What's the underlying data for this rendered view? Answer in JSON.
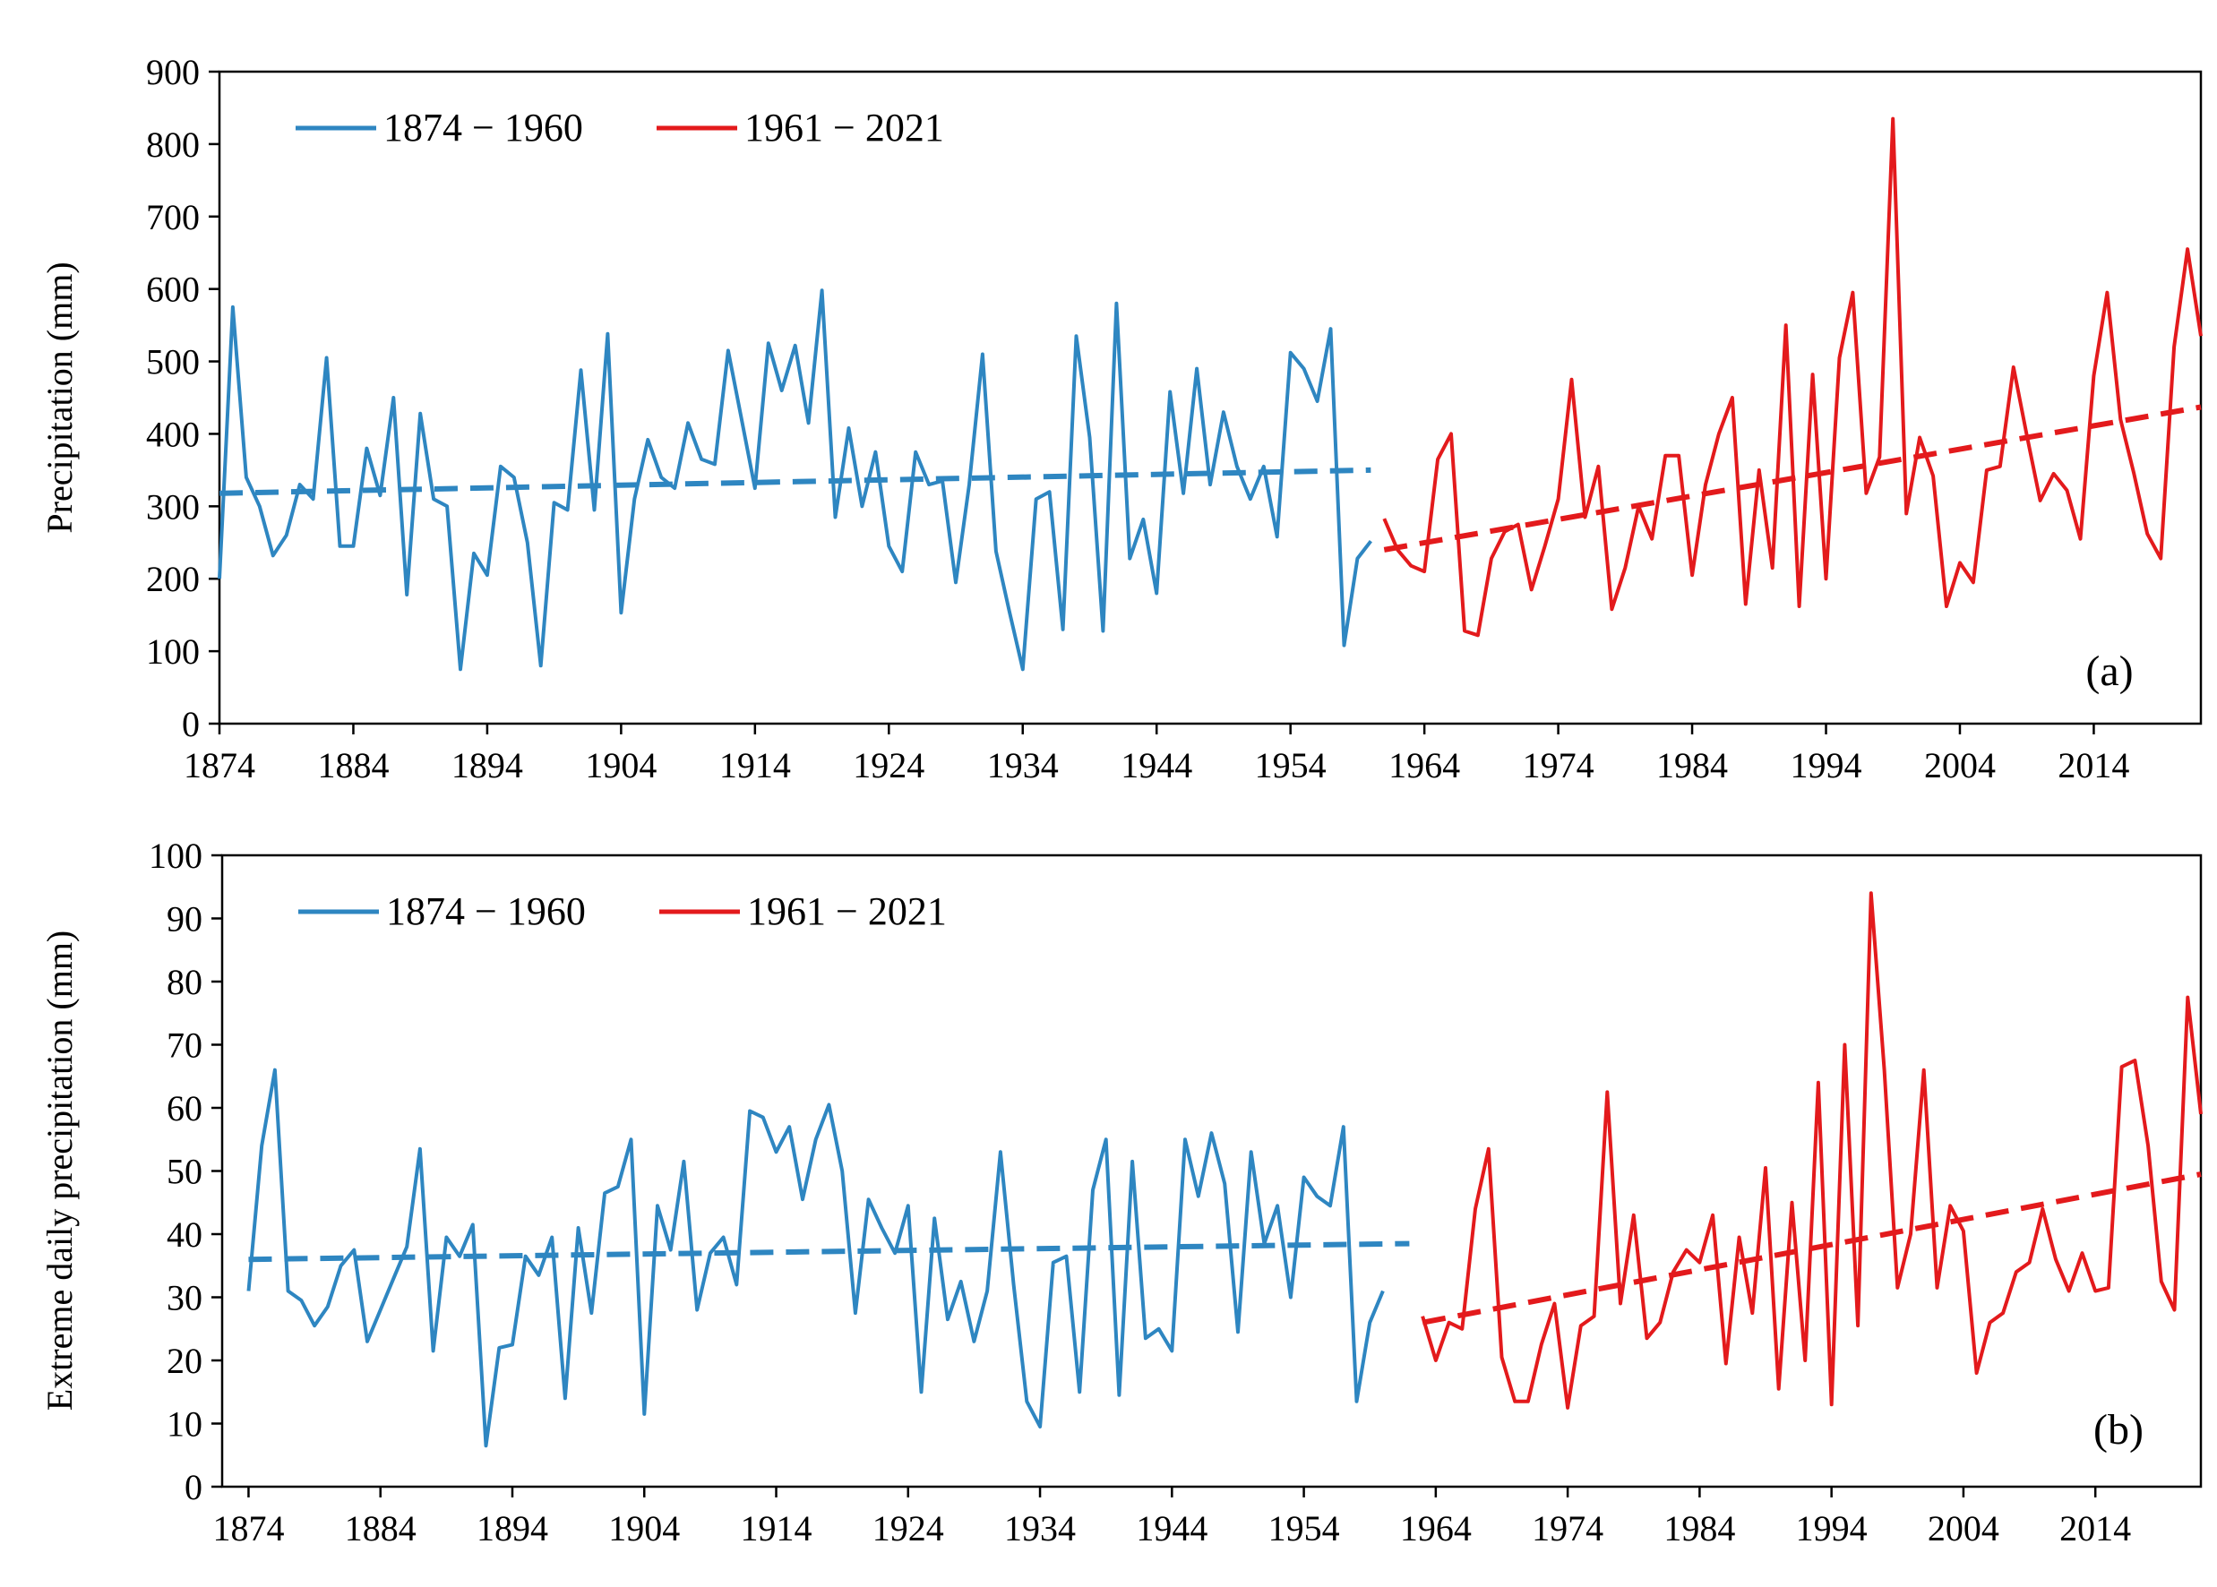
{
  "chart_data": [
    {
      "type": "line",
      "panel_label": "(a)",
      "ylabel": "Precipitation (mm)",
      "ylim": [
        0,
        900
      ],
      "yticks": [
        0,
        100,
        200,
        300,
        400,
        500,
        600,
        700,
        800,
        900
      ],
      "xlim": [
        1874,
        2022
      ],
      "xticks": [
        1874,
        1884,
        1894,
        1904,
        1914,
        1924,
        1934,
        1944,
        1954,
        1964,
        1974,
        1984,
        1994,
        2004,
        2014
      ],
      "legend": [
        "1874 − 1960",
        "1961 − 2021"
      ],
      "legend_position": "top-left",
      "colors": {
        "early": "#2E86C1",
        "late": "#E31A1C"
      },
      "series": [
        {
          "name": "1874 − 1960",
          "x_start": 1874,
          "values": [
            200,
            575,
            340,
            300,
            232,
            260,
            330,
            310,
            505,
            245,
            245,
            380,
            315,
            450,
            178,
            428,
            310,
            300,
            75,
            235,
            205,
            355,
            340,
            250,
            80,
            305,
            295,
            488,
            295,
            538,
            153,
            310,
            392,
            340,
            325,
            415,
            365,
            358,
            515,
            420,
            325,
            525,
            460,
            522,
            415,
            598,
            285,
            408,
            300,
            375,
            245,
            210,
            375,
            330,
            335,
            195,
            330,
            510,
            238,
            155,
            75,
            310,
            320,
            130,
            535,
            395,
            128,
            580,
            228,
            282,
            180,
            458,
            318,
            490,
            330,
            430,
            355,
            310,
            355,
            258,
            512,
            490,
            445,
            545,
            108,
            228,
            252
          ]
        },
        {
          "name": "1961 − 2021",
          "x_start": 1961,
          "values": [
            283,
            240,
            218,
            210,
            365,
            400,
            128,
            122,
            228,
            265,
            275,
            185,
            245,
            310,
            475,
            285,
            355,
            158,
            215,
            300,
            255,
            370,
            370,
            205,
            330,
            400,
            450,
            165,
            350,
            215,
            550,
            162,
            482,
            200,
            505,
            595,
            318,
            368,
            835,
            290,
            395,
            342,
            162,
            222,
            195,
            350,
            355,
            492,
            398,
            308,
            345,
            322,
            255,
            480,
            595,
            420,
            345,
            262,
            228,
            520,
            655,
            535
          ]
        }
      ],
      "trends": [
        {
          "name": "trend 1874 − 1960",
          "x": [
            1874,
            1960
          ],
          "y": [
            318,
            350
          ]
        },
        {
          "name": "trend 1961 − 2021",
          "x": [
            1961,
            2022
          ],
          "y": [
            240,
            437
          ]
        }
      ]
    },
    {
      "type": "line",
      "panel_label": "(b)",
      "ylabel": "Extreme daily precipitation (mm)",
      "ylim": [
        0,
        100
      ],
      "yticks": [
        0,
        10,
        20,
        30,
        40,
        50,
        60,
        70,
        80,
        90,
        100
      ],
      "xlim": [
        1872,
        2022
      ],
      "xticks": [
        1874,
        1884,
        1894,
        1904,
        1914,
        1924,
        1934,
        1944,
        1954,
        1964,
        1974,
        1984,
        1994,
        2004,
        2014
      ],
      "legend": [
        "1874 − 1960",
        "1961 − 2021"
      ],
      "legend_position": "top-left",
      "colors": {
        "early": "#2E86C1",
        "late": "#E31A1C"
      },
      "series": [
        {
          "name": "1874 − 1960",
          "x_start": 1874,
          "values": [
            31,
            54,
            66,
            31,
            29.5,
            25.5,
            28.5,
            35,
            37.5,
            23,
            28,
            33,
            38,
            53.5,
            21.5,
            39.5,
            36.5,
            41.5,
            6.5,
            22,
            22.5,
            36.5,
            33.5,
            39.5,
            14,
            41,
            27.5,
            46.5,
            47.5,
            55,
            11.5,
            44.5,
            37.5,
            51.5,
            28,
            37,
            39.5,
            32,
            59.5,
            58.5,
            53,
            57,
            45.5,
            55,
            60.5,
            50,
            27.5,
            45.5,
            41,
            37,
            44.5,
            15,
            42.5,
            26.5,
            32.5,
            23,
            31,
            53,
            32,
            13.5,
            9.5,
            35.5,
            36.5,
            15,
            47,
            55,
            14.5,
            51.5,
            23.5,
            25,
            21.5,
            55,
            46,
            56,
            48,
            24.5,
            53,
            38.5,
            44.5,
            30,
            49,
            46,
            44.5,
            57,
            13.5,
            26,
            31
          ]
        },
        {
          "name": "1961 − 2021",
          "x_start": 1963,
          "values": [
            27,
            20,
            26,
            25,
            44,
            53.5,
            20.5,
            13.5,
            13.5,
            22.5,
            29,
            12.5,
            25.5,
            27,
            62.5,
            29,
            43,
            23.5,
            26,
            34,
            37.5,
            35.5,
            43,
            19.5,
            39.5,
            27.5,
            50.5,
            15.5,
            45,
            20,
            64,
            13,
            70,
            25.5,
            94,
            66,
            31.5,
            40,
            66,
            31.5,
            44.5,
            40.5,
            18,
            26,
            27.5,
            34,
            35.5,
            44,
            36,
            31,
            37,
            31,
            31.5,
            66.5,
            67.5,
            54,
            32.5,
            28,
            77.5,
            59
          ]
        }
      ],
      "trends": [
        {
          "name": "trend 1874 − 1960",
          "x": [
            1874,
            1962
          ],
          "y": [
            36,
            38.5
          ]
        },
        {
          "name": "trend 1961 − 2021",
          "x": [
            1963,
            2022
          ],
          "y": [
            26,
            49.5
          ]
        }
      ]
    }
  ]
}
